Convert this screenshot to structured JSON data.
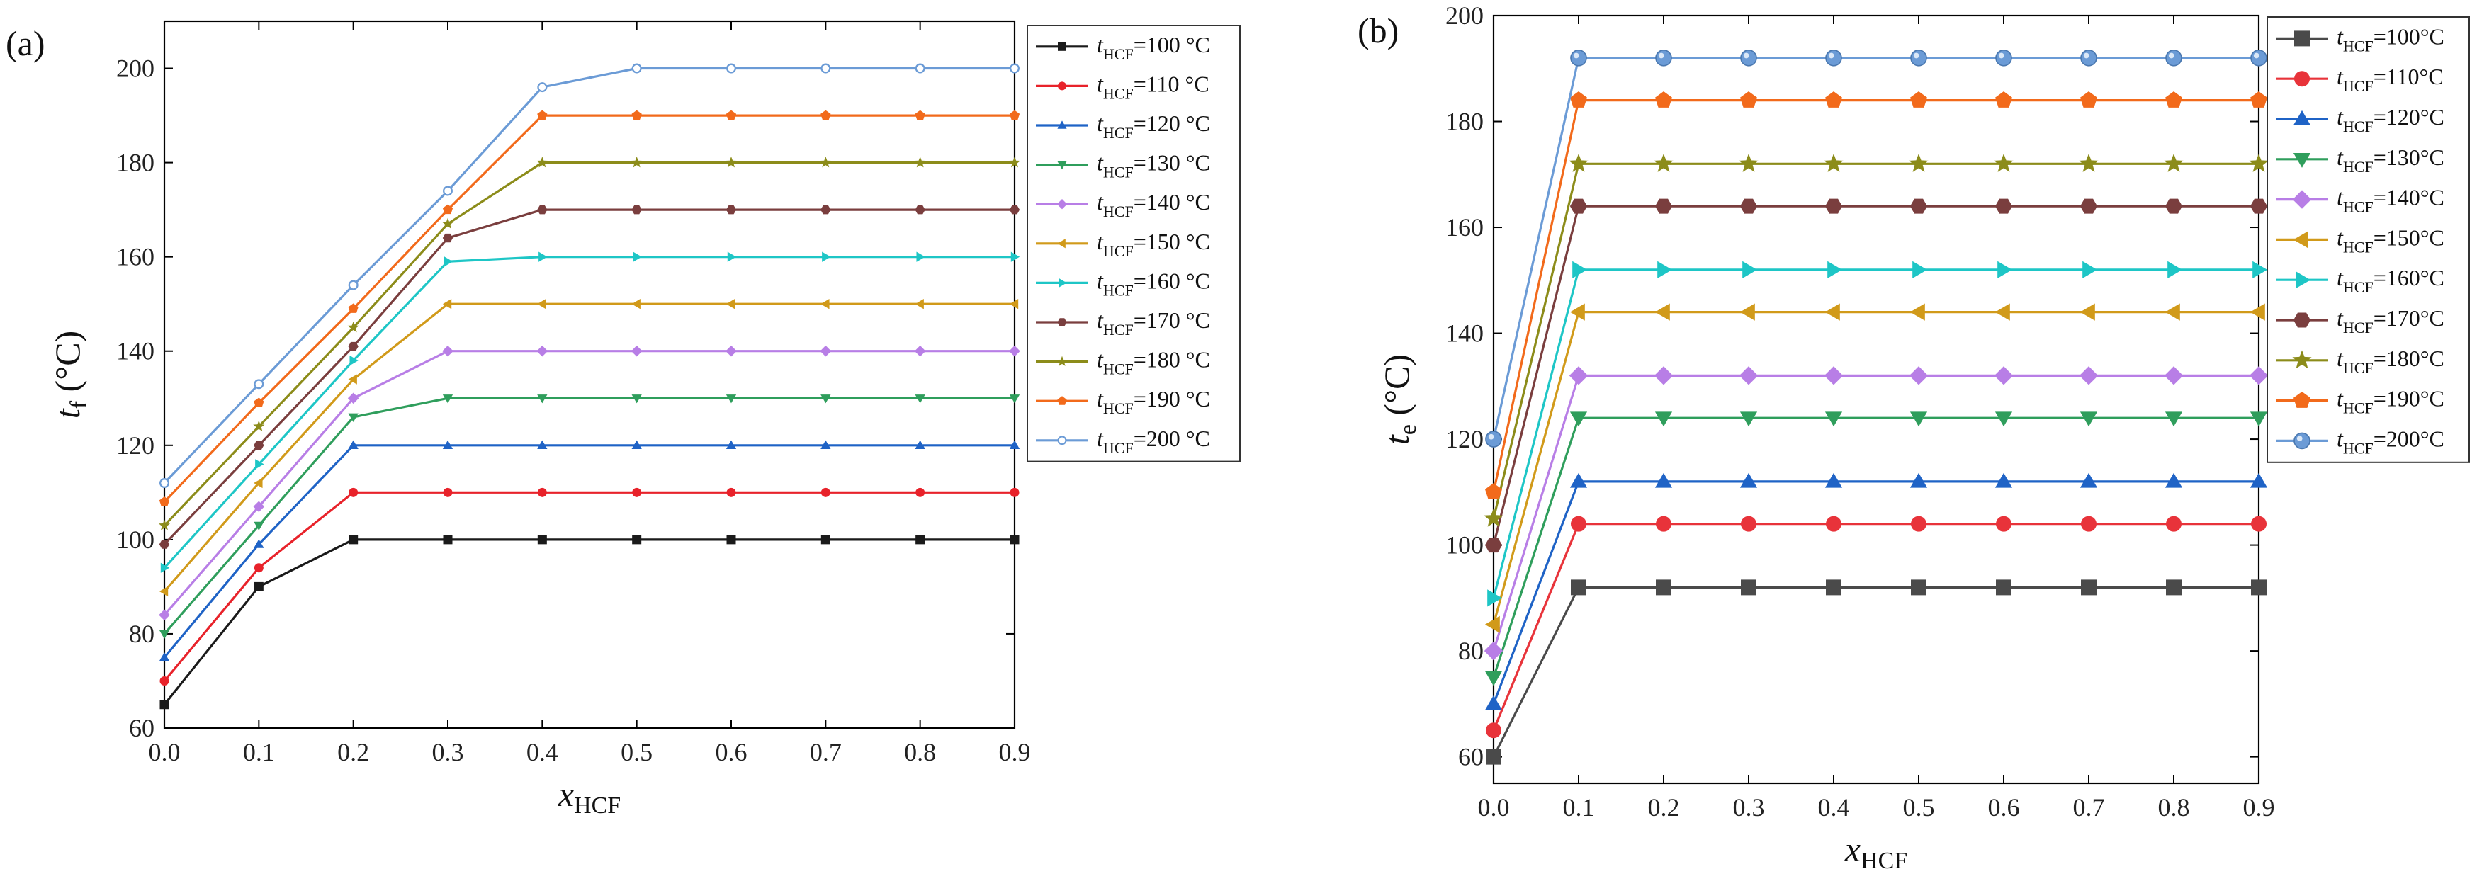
{
  "chart_data": [
    {
      "type": "line",
      "panel_label": "(a)",
      "xlabel": {
        "main": "x",
        "sub": "HCF"
      },
      "ylabel": {
        "main": "t",
        "sub": "f",
        "unit": " (°C)"
      },
      "xlim": [
        0.0,
        0.9
      ],
      "ylim": [
        60,
        210
      ],
      "xticks": [
        0.0,
        0.1,
        0.2,
        0.3,
        0.4,
        0.5,
        0.6,
        0.7,
        0.8,
        0.9
      ],
      "xtick_labels": [
        "0.0",
        "0.1",
        "0.2",
        "0.3",
        "0.4",
        "0.5",
        "0.6",
        "0.7",
        "0.8",
        "0.9"
      ],
      "yticks": [
        60,
        80,
        100,
        120,
        140,
        160,
        180,
        200
      ],
      "ytick_labels": [
        "60",
        "80",
        "100",
        "120",
        "140",
        "160",
        "180",
        "200"
      ],
      "grid": false,
      "legend_position": "right",
      "x": [
        0.0,
        0.1,
        0.2,
        0.3,
        0.4,
        0.5,
        0.6,
        0.7,
        0.8,
        0.9
      ],
      "series": [
        {
          "name_main": "t",
          "name_sub": "HCF",
          "name_rest": "=100 °C",
          "color": "#1a1a1a",
          "marker": "square",
          "values": [
            65,
            90,
            100,
            100,
            100,
            100,
            100,
            100,
            100,
            100
          ]
        },
        {
          "name_main": "t",
          "name_sub": "HCF",
          "name_rest": "=110 °C",
          "color": "#e8222a",
          "marker": "circle",
          "values": [
            70,
            94,
            110,
            110,
            110,
            110,
            110,
            110,
            110,
            110
          ]
        },
        {
          "name_main": "t",
          "name_sub": "HCF",
          "name_rest": "=120 °C",
          "color": "#1f63c6",
          "marker": "triangle-up",
          "values": [
            75,
            99,
            120,
            120,
            120,
            120,
            120,
            120,
            120,
            120
          ]
        },
        {
          "name_main": "t",
          "name_sub": "HCF",
          "name_rest": "=130 °C",
          "color": "#2f9e5c",
          "marker": "triangle-down",
          "values": [
            80,
            103,
            126,
            130,
            130,
            130,
            130,
            130,
            130,
            130
          ]
        },
        {
          "name_main": "t",
          "name_sub": "HCF",
          "name_rest": "=140 °C",
          "color": "#b87ee6",
          "marker": "diamond",
          "values": [
            84,
            107,
            130,
            140,
            140,
            140,
            140,
            140,
            140,
            140
          ]
        },
        {
          "name_main": "t",
          "name_sub": "HCF",
          "name_rest": "=150 °C",
          "color": "#d19a1a",
          "marker": "triangle-left",
          "values": [
            89,
            112,
            134,
            150,
            150,
            150,
            150,
            150,
            150,
            150
          ]
        },
        {
          "name_main": "t",
          "name_sub": "HCF",
          "name_rest": "=160 °C",
          "color": "#1ec6c6",
          "marker": "triangle-right",
          "values": [
            94,
            116,
            138,
            159,
            160,
            160,
            160,
            160,
            160,
            160
          ]
        },
        {
          "name_main": "t",
          "name_sub": "HCF",
          "name_rest": "=170 °C",
          "color": "#7a3e3e",
          "marker": "hexagon",
          "values": [
            99,
            120,
            141,
            164,
            170,
            170,
            170,
            170,
            170,
            170
          ]
        },
        {
          "name_main": "t",
          "name_sub": "HCF",
          "name_rest": "=180 °C",
          "color": "#8c8c1a",
          "marker": "star",
          "values": [
            103,
            124,
            145,
            167,
            180,
            180,
            180,
            180,
            180,
            180
          ]
        },
        {
          "name_main": "t",
          "name_sub": "HCF",
          "name_rest": "=190 °C",
          "color": "#f26a1b",
          "marker": "pentagon",
          "values": [
            108,
            129,
            149,
            170,
            190,
            190,
            190,
            190,
            190,
            190
          ]
        },
        {
          "name_main": "t",
          "name_sub": "HCF",
          "name_rest": "=200 °C",
          "color": "#6b9bd6",
          "marker": "circle-open",
          "values": [
            112,
            133,
            154,
            174,
            196,
            200,
            200,
            200,
            200,
            200
          ]
        }
      ]
    },
    {
      "type": "line",
      "panel_label": "(b)",
      "xlabel": {
        "main": "x",
        "sub": "HCF"
      },
      "ylabel": {
        "main": "t",
        "sub": "e",
        "unit": " (°C)"
      },
      "xlim": [
        0.0,
        0.9
      ],
      "ylim": [
        55,
        200
      ],
      "xticks": [
        0.0,
        0.1,
        0.2,
        0.3,
        0.4,
        0.5,
        0.6,
        0.7,
        0.8,
        0.9
      ],
      "xtick_labels": [
        "0.0",
        "0.1",
        "0.2",
        "0.3",
        "0.4",
        "0.5",
        "0.6",
        "0.7",
        "0.8",
        "0.9"
      ],
      "yticks": [
        60,
        80,
        100,
        120,
        140,
        160,
        180,
        200
      ],
      "ytick_labels": [
        "60",
        "80",
        "100",
        "120",
        "140",
        "160",
        "180",
        "200"
      ],
      "grid": false,
      "legend_position": "right",
      "x": [
        0.0,
        0.1,
        0.2,
        0.3,
        0.4,
        0.5,
        0.6,
        0.7,
        0.8,
        0.9
      ],
      "series": [
        {
          "name_main": "t",
          "name_sub": "HCF",
          "name_rest": "=100°C",
          "color": "#4a4a4a",
          "marker": "square",
          "values": [
            60,
            92,
            92,
            92,
            92,
            92,
            92,
            92,
            92,
            92
          ]
        },
        {
          "name_main": "t",
          "name_sub": "HCF",
          "name_rest": "=110°C",
          "color": "#e8333a",
          "marker": "circle",
          "values": [
            65,
            104,
            104,
            104,
            104,
            104,
            104,
            104,
            104,
            104
          ]
        },
        {
          "name_main": "t",
          "name_sub": "HCF",
          "name_rest": "=120°C",
          "color": "#1f63c6",
          "marker": "triangle-up",
          "values": [
            70,
            112,
            112,
            112,
            112,
            112,
            112,
            112,
            112,
            112
          ]
        },
        {
          "name_main": "t",
          "name_sub": "HCF",
          "name_rest": "=130°C",
          "color": "#2f9e5c",
          "marker": "triangle-down",
          "values": [
            75,
            124,
            124,
            124,
            124,
            124,
            124,
            124,
            124,
            124
          ]
        },
        {
          "name_main": "t",
          "name_sub": "HCF",
          "name_rest": "=140°C",
          "color": "#b87ee6",
          "marker": "diamond",
          "values": [
            80,
            132,
            132,
            132,
            132,
            132,
            132,
            132,
            132,
            132
          ]
        },
        {
          "name_main": "t",
          "name_sub": "HCF",
          "name_rest": "=150°C",
          "color": "#d19a1a",
          "marker": "triangle-left",
          "values": [
            85,
            144,
            144,
            144,
            144,
            144,
            144,
            144,
            144,
            144
          ]
        },
        {
          "name_main": "t",
          "name_sub": "HCF",
          "name_rest": "=160°C",
          "color": "#1ec6c6",
          "marker": "triangle-right",
          "values": [
            90,
            152,
            152,
            152,
            152,
            152,
            152,
            152,
            152,
            152
          ]
        },
        {
          "name_main": "t",
          "name_sub": "HCF",
          "name_rest": "=170°C",
          "color": "#7a3e3e",
          "marker": "hexagon",
          "values": [
            100,
            164,
            164,
            164,
            164,
            164,
            164,
            164,
            164,
            164
          ]
        },
        {
          "name_main": "t",
          "name_sub": "HCF",
          "name_rest": "=180°C",
          "color": "#8c8c1a",
          "marker": "star",
          "values": [
            105,
            172,
            172,
            172,
            172,
            172,
            172,
            172,
            172,
            172
          ]
        },
        {
          "name_main": "t",
          "name_sub": "HCF",
          "name_rest": "=190°C",
          "color": "#f26a1b",
          "marker": "pentagon",
          "values": [
            110,
            184,
            184,
            184,
            184,
            184,
            184,
            184,
            184,
            184
          ]
        },
        {
          "name_main": "t",
          "name_sub": "HCF",
          "name_rest": "=200°C",
          "color": "#6b9bd6",
          "marker": "circle-shaded",
          "values": [
            120,
            192,
            192,
            192,
            192,
            192,
            192,
            192,
            192,
            192
          ]
        }
      ]
    }
  ]
}
